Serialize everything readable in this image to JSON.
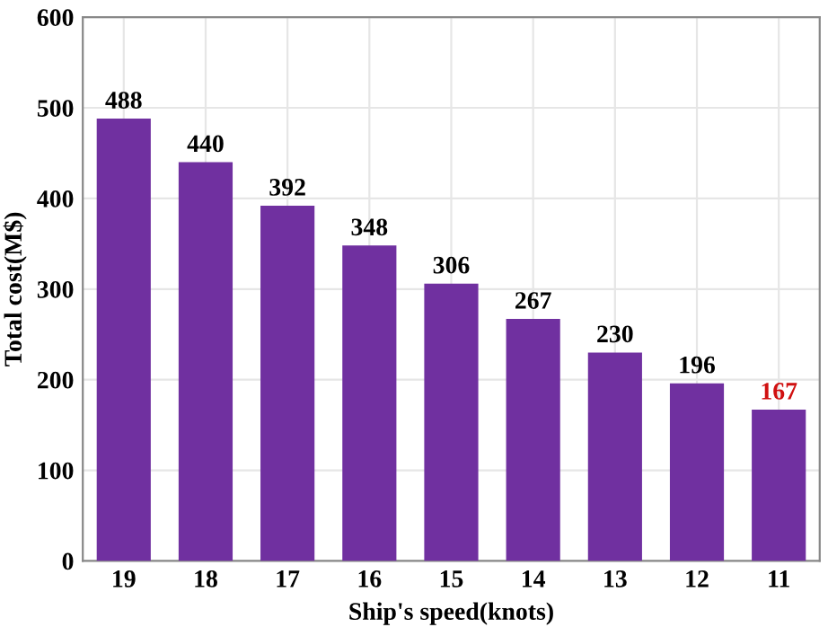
{
  "chart_data": {
    "type": "bar",
    "xlabel": "Ship's speed(knots)",
    "ylabel": "Total cost(M$)",
    "categories": [
      "19",
      "18",
      "17",
      "16",
      "15",
      "14",
      "13",
      "12",
      "11"
    ],
    "values": [
      488,
      440,
      392,
      348,
      306,
      267,
      230,
      196,
      167
    ],
    "color": "#7030a0",
    "value_labels": [
      "488",
      "440",
      "392",
      "348",
      "306",
      "267",
      "230",
      "196",
      null
    ],
    "annotations": [
      {
        "text": "167",
        "x": "11",
        "y": 167
      }
    ],
    "ylim": [
      0,
      600
    ],
    "yticks": [
      0,
      100,
      200,
      300,
      400,
      500,
      600
    ],
    "grid": true
  }
}
